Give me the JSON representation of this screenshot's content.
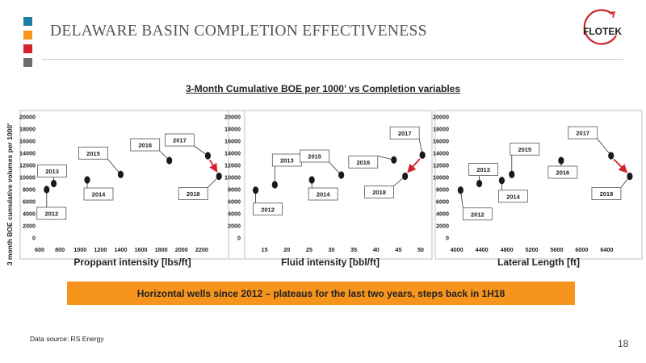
{
  "header": {
    "title": "DELAWARE BASIN COMPLETION EFFECTIVENESS",
    "logo_text": "FLOTEK",
    "square_colors": [
      "#1f7ea1",
      "#f7941d",
      "#d2232a",
      "#6d6e71"
    ]
  },
  "subtitle": "3-Month Cumulative BOE per 1000’ vs Completion variables",
  "shared_ylabel": "3 month BOE cumulative volumes per 1000'",
  "banner": {
    "text": "Horizontal wells since 2012 – plateaus for the last two years, steps back in 1H18",
    "color": "#f7941d"
  },
  "source": "Data source: RS Energy",
  "page_number": "18",
  "arrow_color": "#d2232a",
  "chart_data": [
    {
      "type": "scatter",
      "xlabel": "Proppant intensity [lbs/ft]",
      "xlim": [
        600,
        2400
      ],
      "xticks": [
        600,
        800,
        1000,
        1200,
        1400,
        1600,
        1800,
        2000,
        2200
      ],
      "ylim": [
        0,
        20000
      ],
      "yticks": [
        0,
        2000,
        4000,
        6000,
        8000,
        10000,
        12000,
        14000,
        16000,
        18000,
        20000
      ],
      "points": [
        {
          "label": "2012",
          "x": 670,
          "y": 8000
        },
        {
          "label": "2013",
          "x": 740,
          "y": 9000
        },
        {
          "label": "2014",
          "x": 1070,
          "y": 9600
        },
        {
          "label": "2015",
          "x": 1400,
          "y": 10500
        },
        {
          "label": "2016",
          "x": 1880,
          "y": 12800
        },
        {
          "label": "2017",
          "x": 2260,
          "y": 13600
        },
        {
          "label": "2018",
          "x": 2370,
          "y": 10200
        }
      ],
      "arrow": {
        "from": "2017",
        "to": "2018"
      }
    },
    {
      "type": "scatter",
      "xlabel": "Fluid intensity [bbl/ft]",
      "xlim": [
        10,
        52
      ],
      "xticks": [
        15,
        20,
        25,
        30,
        35,
        40,
        45,
        50
      ],
      "ylim": [
        0,
        20000
      ],
      "yticks": [
        0,
        2000,
        4000,
        6000,
        8000,
        10000,
        12000,
        14000,
        16000,
        18000,
        20000
      ],
      "points": [
        {
          "label": "2012",
          "x": 13,
          "y": 7900
        },
        {
          "label": "2013",
          "x": 17.3,
          "y": 8800
        },
        {
          "label": "2014",
          "x": 25.6,
          "y": 9600
        },
        {
          "label": "2015",
          "x": 32.2,
          "y": 10400
        },
        {
          "label": "2016",
          "x": 44,
          "y": 12900
        },
        {
          "label": "2017",
          "x": 50.4,
          "y": 13700
        },
        {
          "label": "2018",
          "x": 46.5,
          "y": 10200
        }
      ],
      "arrow": {
        "from": "2017",
        "to": "2018"
      }
    },
    {
      "type": "scatter",
      "xlabel": "Lateral Length [ft]",
      "xlim": [
        3900,
        6900
      ],
      "xticks": [
        4000,
        4400,
        4800,
        5200,
        5600,
        6000,
        6400
      ],
      "ylim": [
        0,
        20000
      ],
      "yticks": [
        0,
        2000,
        4000,
        6000,
        8000,
        10000,
        12000,
        14000,
        16000,
        18000,
        20000
      ],
      "points": [
        {
          "label": "2012",
          "x": 4060,
          "y": 7900
        },
        {
          "label": "2013",
          "x": 4360,
          "y": 9000
        },
        {
          "label": "2014",
          "x": 4720,
          "y": 9500
        },
        {
          "label": "2015",
          "x": 4880,
          "y": 10500
        },
        {
          "label": "2016",
          "x": 5670,
          "y": 12800
        },
        {
          "label": "2017",
          "x": 6470,
          "y": 13600
        },
        {
          "label": "2018",
          "x": 6770,
          "y": 10200
        }
      ],
      "arrow": {
        "from": "2017",
        "to": "2018"
      }
    }
  ]
}
